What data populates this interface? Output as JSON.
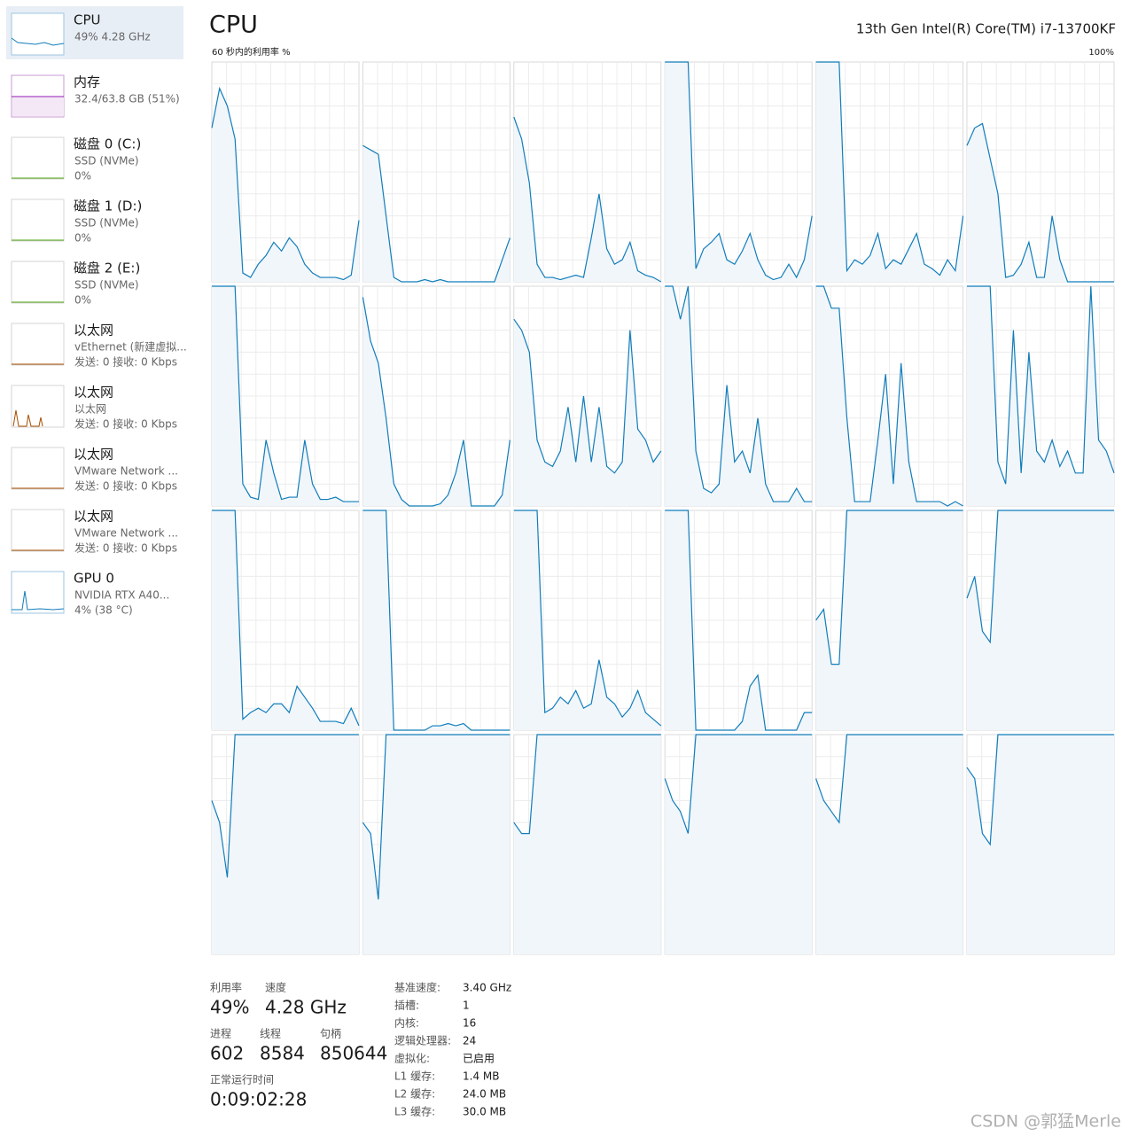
{
  "sidebar": [
    {
      "title": "CPU",
      "lines": [
        "49% 4.28 GHz"
      ]
    },
    {
      "title": "内存",
      "lines": [
        "32.4/63.8 GB (51%)"
      ]
    },
    {
      "title": "磁盘 0 (C:)",
      "lines": [
        "SSD (NVMe)",
        "0%"
      ]
    },
    {
      "title": "磁盘 1 (D:)",
      "lines": [
        "SSD (NVMe)",
        "0%"
      ]
    },
    {
      "title": "磁盘 2 (E:)",
      "lines": [
        "SSD (NVMe)",
        "0%"
      ]
    },
    {
      "title": "以太网",
      "lines": [
        "vEthernet (新建虚拟...",
        "发送: 0 接收: 0 Kbps"
      ]
    },
    {
      "title": "以太网",
      "lines": [
        "以太网",
        "发送: 0 接收: 0 Kbps"
      ]
    },
    {
      "title": "以太网",
      "lines": [
        "VMware Network ...",
        "发送: 0 接收: 0 Kbps"
      ]
    },
    {
      "title": "以太网",
      "lines": [
        "VMware Network ...",
        "发送: 0 接收: 0 Kbps"
      ]
    },
    {
      "title": "GPU 0",
      "lines": [
        "NVIDIA RTX A40...",
        "4% (38 °C)"
      ]
    }
  ],
  "header": {
    "title": "CPU",
    "model": "13th Gen Intel(R) Core(TM) i7-13700KF",
    "subtitle": "60 秒内的利用率 %",
    "max": "100%"
  },
  "cores": [
    [
      70,
      88,
      80,
      65,
      4,
      2,
      8,
      12,
      18,
      14,
      20,
      16,
      8,
      4,
      2,
      2,
      2,
      1,
      3,
      28
    ],
    [
      62,
      60,
      58,
      30,
      2,
      0,
      0,
      0,
      1,
      0,
      1,
      0,
      0,
      0,
      0,
      0,
      0,
      0,
      10,
      20
    ],
    [
      75,
      65,
      45,
      8,
      2,
      2,
      1,
      2,
      3,
      2,
      20,
      40,
      15,
      8,
      10,
      18,
      5,
      3,
      2,
      0
    ],
    [
      100,
      100,
      100,
      100,
      6,
      15,
      18,
      22,
      10,
      8,
      14,
      22,
      10,
      3,
      1,
      2,
      8,
      2,
      10,
      30
    ],
    [
      100,
      100,
      100,
      100,
      5,
      10,
      8,
      12,
      22,
      6,
      10,
      8,
      15,
      22,
      8,
      6,
      3,
      10,
      5,
      30
    ],
    [
      62,
      70,
      72,
      56,
      40,
      2,
      3,
      8,
      18,
      2,
      2,
      30,
      10,
      0,
      0,
      0,
      0,
      0,
      0,
      0
    ],
    [
      100,
      100,
      100,
      100,
      10,
      4,
      3,
      30,
      15,
      3,
      4,
      4,
      30,
      10,
      3,
      3,
      4,
      2,
      2,
      2
    ],
    [
      95,
      75,
      65,
      40,
      10,
      3,
      0,
      0,
      0,
      0,
      1,
      5,
      15,
      30,
      0,
      0,
      0,
      0,
      5,
      30
    ],
    [
      85,
      80,
      70,
      30,
      20,
      18,
      25,
      45,
      20,
      50,
      20,
      45,
      18,
      15,
      20,
      80,
      35,
      30,
      20,
      25
    ],
    [
      100,
      100,
      85,
      100,
      25,
      8,
      6,
      10,
      55,
      20,
      25,
      15,
      40,
      10,
      2,
      2,
      2,
      8,
      2,
      2
    ],
    [
      100,
      100,
      90,
      90,
      40,
      2,
      2,
      2,
      30,
      60,
      10,
      65,
      20,
      2,
      2,
      2,
      2,
      0,
      2,
      0
    ],
    [
      100,
      100,
      100,
      100,
      20,
      10,
      80,
      15,
      70,
      25,
      20,
      30,
      18,
      25,
      15,
      15,
      100,
      30,
      25,
      15
    ],
    [
      100,
      100,
      100,
      100,
      5,
      8,
      10,
      8,
      12,
      12,
      8,
      20,
      15,
      10,
      4,
      4,
      4,
      3,
      10,
      2
    ],
    [
      100,
      100,
      100,
      100,
      0,
      0,
      0,
      0,
      0,
      2,
      2,
      3,
      2,
      3,
      0,
      0,
      0,
      0,
      0,
      0
    ],
    [
      100,
      100,
      100,
      100,
      8,
      10,
      15,
      12,
      18,
      10,
      12,
      32,
      15,
      12,
      6,
      10,
      18,
      8,
      5,
      2
    ],
    [
      100,
      100,
      100,
      100,
      0,
      0,
      0,
      0,
      0,
      0,
      4,
      20,
      25,
      0,
      0,
      0,
      0,
      0,
      8,
      8
    ],
    [
      50,
      55,
      30,
      30,
      100,
      100,
      100,
      100,
      100,
      100,
      100,
      100,
      100,
      100,
      100,
      100,
      100,
      100,
      100,
      100
    ],
    [
      60,
      70,
      45,
      40,
      100,
      100,
      100,
      100,
      100,
      100,
      100,
      100,
      100,
      100,
      100,
      100,
      100,
      100,
      100,
      100
    ],
    [
      70,
      60,
      35,
      100,
      100,
      100,
      100,
      100,
      100,
      100,
      100,
      100,
      100,
      100,
      100,
      100,
      100,
      100,
      100,
      100
    ],
    [
      60,
      55,
      25,
      100,
      100,
      100,
      100,
      100,
      100,
      100,
      100,
      100,
      100,
      100,
      100,
      100,
      100,
      100,
      100,
      100
    ],
    [
      60,
      55,
      55,
      100,
      100,
      100,
      100,
      100,
      100,
      100,
      100,
      100,
      100,
      100,
      100,
      100,
      100,
      100,
      100,
      100
    ],
    [
      80,
      70,
      65,
      55,
      100,
      100,
      100,
      100,
      100,
      100,
      100,
      100,
      100,
      100,
      100,
      100,
      100,
      100,
      100,
      100
    ],
    [
      80,
      70,
      65,
      60,
      100,
      100,
      100,
      100,
      100,
      100,
      100,
      100,
      100,
      100,
      100,
      100,
      100,
      100,
      100,
      100
    ],
    [
      85,
      80,
      55,
      50,
      100,
      100,
      100,
      100,
      100,
      100,
      100,
      100,
      100,
      100,
      100,
      100,
      100,
      100,
      100,
      100
    ]
  ],
  "stats": [
    {
      "label": "利用率",
      "value": "49%"
    },
    {
      "label": "速度",
      "value": "4.28 GHz"
    },
    {
      "label": "进程",
      "value": "602"
    },
    {
      "label": "线程",
      "value": "8584"
    },
    {
      "label": "句柄",
      "value": "850644"
    },
    {
      "label": "正常运行时间",
      "value": "0:09:02:28"
    }
  ],
  "details": [
    {
      "label": "基准速度:",
      "value": "3.40 GHz"
    },
    {
      "label": "插槽:",
      "value": "1"
    },
    {
      "label": "内核:",
      "value": "16"
    },
    {
      "label": "逻辑处理器:",
      "value": "24"
    },
    {
      "label": "虚拟化:",
      "value": "已启用"
    },
    {
      "label": "L1 缓存:",
      "value": "1.4 MB"
    },
    {
      "label": "L2 缓存:",
      "value": "24.0 MB"
    },
    {
      "label": "L3 缓存:",
      "value": "30.0 MB"
    }
  ],
  "watermark": "CSDN @郭猛Merle"
}
